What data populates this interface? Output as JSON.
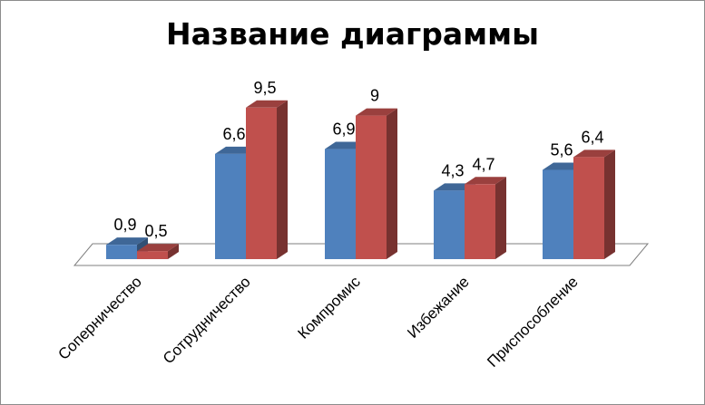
{
  "chart_data": {
    "type": "bar",
    "title": "Название диаграммы",
    "categories": [
      "Соперничество",
      "Сотрудничество",
      "Компромис",
      "Избежание",
      "Приспособление"
    ],
    "series": [
      {
        "values": [
          0.9,
          6.6,
          6.9,
          4.3,
          5.6
        ],
        "color": "#4f81bd",
        "labels": [
          "0,9",
          "6,6",
          "6,9",
          "4,3",
          "5,6"
        ]
      },
      {
        "values": [
          0.5,
          9.5,
          9,
          4.7,
          6.4
        ],
        "color": "#c0504d",
        "labels": [
          "0,5",
          "9,5",
          "9",
          "4,7",
          "6,4"
        ]
      }
    ],
    "ylim": [
      0,
      10
    ],
    "grid": false,
    "legend": "none",
    "style": "3d-clustered-column"
  }
}
